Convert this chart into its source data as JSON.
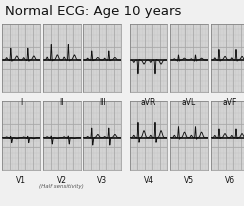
{
  "title": "Normal ECG: Age 10 years",
  "title_fontsize": 9.5,
  "bg_color": "#f0f0f0",
  "row1_labels": [
    "I",
    "II",
    "III",
    "aVR",
    "aVL",
    "aVF"
  ],
  "row2_labels": [
    "V1",
    "V2",
    "V3",
    "V4",
    "V5",
    "V6"
  ],
  "subtitle": "(Half sensitivity)",
  "panel_bg": "#d8d8d8",
  "minor_grid_color": "#c0c0c0",
  "major_grid_color": "#a8a8a8",
  "ecg_color": "#111111",
  "baseline_color": "#111111",
  "label_fontsize": 5.5,
  "subtitle_fontsize": 4.0
}
